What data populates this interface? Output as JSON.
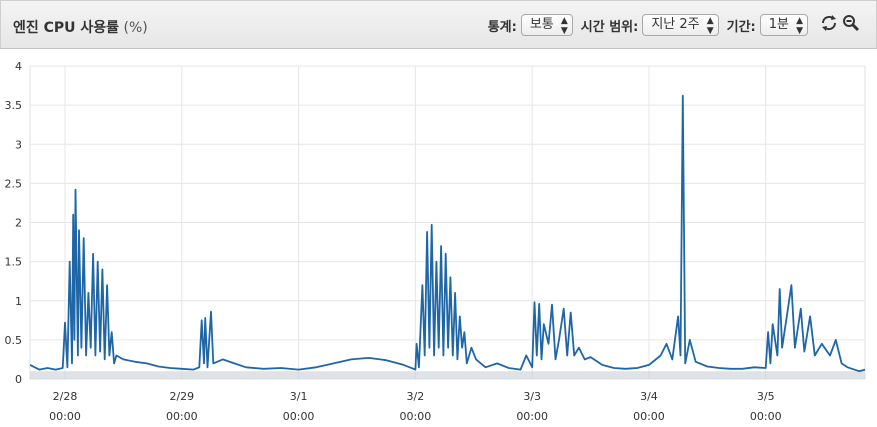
{
  "header": {
    "title": "엔진 CPU 사용률",
    "unit": "(%)",
    "stat_label": "통계:",
    "stat_value": "보통",
    "range_label": "시간 범위:",
    "range_value": "지난 2주",
    "period_label": "기간:",
    "period_value": "1분",
    "refresh_icon": "refresh-icon",
    "zoom_icon": "zoom-out-icon"
  },
  "colors": {
    "line": "#1f66a6",
    "band": "#c9ced6",
    "grid": "#e6e6e6"
  },
  "chart_data": {
    "type": "line",
    "title": "",
    "xlabel": "",
    "ylabel": "",
    "ylim": [
      0,
      4
    ],
    "y_ticks": [
      "0",
      "0.5",
      "1",
      "1.5",
      "2",
      "2.5",
      "3",
      "3.5",
      "4"
    ],
    "x_range": [
      -0.3,
      6.85
    ],
    "x_tick_labels": [
      {
        "date": "2/28",
        "time": "00:00"
      },
      {
        "date": "2/29",
        "time": "00:00"
      },
      {
        "date": "3/1",
        "time": "00:00"
      },
      {
        "date": "3/2",
        "time": "00:00"
      },
      {
        "date": "3/3",
        "time": "00:00"
      },
      {
        "date": "3/4",
        "time": "00:00"
      },
      {
        "date": "3/5",
        "time": "00:00"
      }
    ],
    "grid": true,
    "legend": "none",
    "series": [
      {
        "values": [
          [
            -0.3,
            0.18
          ],
          [
            -0.22,
            0.12
          ],
          [
            -0.15,
            0.14
          ],
          [
            -0.08,
            0.12
          ],
          [
            -0.02,
            0.14
          ],
          [
            0.0,
            0.72
          ],
          [
            0.02,
            0.15
          ],
          [
            0.04,
            1.5
          ],
          [
            0.06,
            0.2
          ],
          [
            0.07,
            2.1
          ],
          [
            0.08,
            0.5
          ],
          [
            0.09,
            2.42
          ],
          [
            0.11,
            0.3
          ],
          [
            0.12,
            1.9
          ],
          [
            0.14,
            0.4
          ],
          [
            0.16,
            1.8
          ],
          [
            0.18,
            0.3
          ],
          [
            0.2,
            1.1
          ],
          [
            0.22,
            0.4
          ],
          [
            0.24,
            1.6
          ],
          [
            0.26,
            0.3
          ],
          [
            0.28,
            1.5
          ],
          [
            0.3,
            0.35
          ],
          [
            0.32,
            1.4
          ],
          [
            0.34,
            0.25
          ],
          [
            0.36,
            1.2
          ],
          [
            0.38,
            0.3
          ],
          [
            0.4,
            0.6
          ],
          [
            0.42,
            0.2
          ],
          [
            0.44,
            0.3
          ],
          [
            0.5,
            0.25
          ],
          [
            0.6,
            0.22
          ],
          [
            0.7,
            0.2
          ],
          [
            0.8,
            0.16
          ],
          [
            0.9,
            0.14
          ],
          [
            1.0,
            0.13
          ],
          [
            1.1,
            0.12
          ],
          [
            1.15,
            0.15
          ],
          [
            1.17,
            0.75
          ],
          [
            1.19,
            0.2
          ],
          [
            1.2,
            0.78
          ],
          [
            1.22,
            0.15
          ],
          [
            1.25,
            0.86
          ],
          [
            1.27,
            0.2
          ],
          [
            1.35,
            0.25
          ],
          [
            1.45,
            0.2
          ],
          [
            1.55,
            0.15
          ],
          [
            1.7,
            0.13
          ],
          [
            1.85,
            0.14
          ],
          [
            2.0,
            0.12
          ],
          [
            2.15,
            0.15
          ],
          [
            2.3,
            0.2
          ],
          [
            2.45,
            0.25
          ],
          [
            2.6,
            0.27
          ],
          [
            2.75,
            0.24
          ],
          [
            2.9,
            0.18
          ],
          [
            3.0,
            0.12
          ],
          [
            3.01,
            0.45
          ],
          [
            3.03,
            0.15
          ],
          [
            3.06,
            1.2
          ],
          [
            3.08,
            0.3
          ],
          [
            3.1,
            1.88
          ],
          [
            3.12,
            0.4
          ],
          [
            3.14,
            1.97
          ],
          [
            3.16,
            0.3
          ],
          [
            3.18,
            1.5
          ],
          [
            3.2,
            0.4
          ],
          [
            3.22,
            1.7
          ],
          [
            3.24,
            0.3
          ],
          [
            3.26,
            1.6
          ],
          [
            3.28,
            0.4
          ],
          [
            3.3,
            1.3
          ],
          [
            3.32,
            0.3
          ],
          [
            3.34,
            1.1
          ],
          [
            3.36,
            0.25
          ],
          [
            3.38,
            0.8
          ],
          [
            3.4,
            0.4
          ],
          [
            3.42,
            0.6
          ],
          [
            3.44,
            0.2
          ],
          [
            3.48,
            0.4
          ],
          [
            3.52,
            0.25
          ],
          [
            3.6,
            0.15
          ],
          [
            3.7,
            0.2
          ],
          [
            3.8,
            0.14
          ],
          [
            3.9,
            0.12
          ],
          [
            3.95,
            0.3
          ],
          [
            4.0,
            0.15
          ],
          [
            4.02,
            0.98
          ],
          [
            4.04,
            0.3
          ],
          [
            4.06,
            0.96
          ],
          [
            4.08,
            0.25
          ],
          [
            4.1,
            0.7
          ],
          [
            4.14,
            0.45
          ],
          [
            4.17,
            0.95
          ],
          [
            4.2,
            0.25
          ],
          [
            4.23,
            0.5
          ],
          [
            4.27,
            0.9
          ],
          [
            4.3,
            0.3
          ],
          [
            4.33,
            0.85
          ],
          [
            4.36,
            0.3
          ],
          [
            4.4,
            0.4
          ],
          [
            4.45,
            0.25
          ],
          [
            4.5,
            0.28
          ],
          [
            4.6,
            0.18
          ],
          [
            4.7,
            0.14
          ],
          [
            4.8,
            0.13
          ],
          [
            4.9,
            0.14
          ],
          [
            5.0,
            0.18
          ],
          [
            5.1,
            0.3
          ],
          [
            5.15,
            0.45
          ],
          [
            5.2,
            0.25
          ],
          [
            5.25,
            0.8
          ],
          [
            5.27,
            0.3
          ],
          [
            5.29,
            3.62
          ],
          [
            5.31,
            0.2
          ],
          [
            5.35,
            0.5
          ],
          [
            5.4,
            0.22
          ],
          [
            5.5,
            0.16
          ],
          [
            5.6,
            0.14
          ],
          [
            5.7,
            0.13
          ],
          [
            5.8,
            0.13
          ],
          [
            5.9,
            0.15
          ],
          [
            6.0,
            0.14
          ],
          [
            6.02,
            0.6
          ],
          [
            6.04,
            0.2
          ],
          [
            6.06,
            0.7
          ],
          [
            6.1,
            0.3
          ],
          [
            6.12,
            1.15
          ],
          [
            6.14,
            0.4
          ],
          [
            6.18,
            0.8
          ],
          [
            6.22,
            1.2
          ],
          [
            6.25,
            0.4
          ],
          [
            6.3,
            0.9
          ],
          [
            6.33,
            0.35
          ],
          [
            6.38,
            0.8
          ],
          [
            6.42,
            0.3
          ],
          [
            6.48,
            0.45
          ],
          [
            6.55,
            0.3
          ],
          [
            6.6,
            0.5
          ],
          [
            6.65,
            0.2
          ],
          [
            6.7,
            0.15
          ],
          [
            6.8,
            0.1
          ],
          [
            6.85,
            0.12
          ]
        ]
      }
    ]
  }
}
